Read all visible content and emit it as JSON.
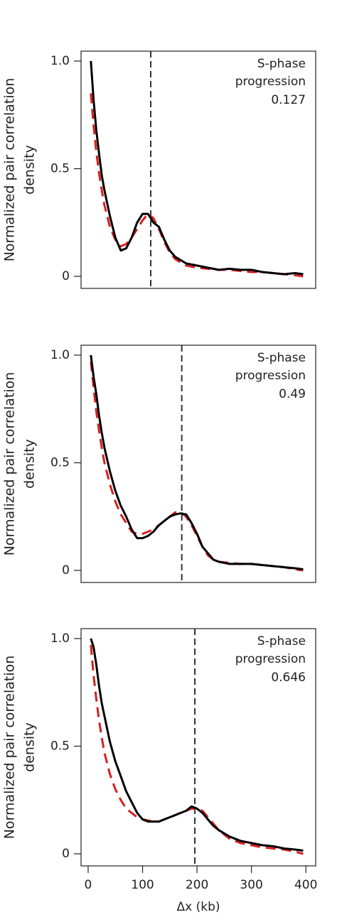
{
  "chart_data": [
    {
      "type": "line",
      "ylabel": [
        "Normalized pair correlation",
        "density"
      ],
      "annotation": [
        "S-phase",
        "progression"
      ],
      "progression": 0.127,
      "vline": 115,
      "x": [
        5,
        10,
        15,
        20,
        25,
        30,
        40,
        50,
        60,
        70,
        80,
        90,
        100,
        110,
        120,
        130,
        140,
        150,
        160,
        180,
        200,
        220,
        240,
        260,
        280,
        300,
        320,
        340,
        360,
        380,
        395
      ],
      "series": [
        {
          "color": "#d71f1f",
          "dashed": true,
          "values": [
            0.85,
            0.7,
            0.58,
            0.48,
            0.4,
            0.33,
            0.23,
            0.17,
            0.14,
            0.15,
            0.18,
            0.22,
            0.26,
            0.29,
            0.27,
            0.22,
            0.16,
            0.11,
            0.08,
            0.05,
            0.04,
            0.035,
            0.03,
            0.03,
            0.025,
            0.02,
            0.02,
            0.015,
            0.01,
            0.005,
            0
          ]
        },
        {
          "color": "#000000",
          "dashed": false,
          "values": [
            1.0,
            0.82,
            0.68,
            0.57,
            0.47,
            0.4,
            0.28,
            0.18,
            0.12,
            0.13,
            0.18,
            0.25,
            0.29,
            0.29,
            0.25,
            0.23,
            0.17,
            0.12,
            0.09,
            0.06,
            0.05,
            0.04,
            0.03,
            0.035,
            0.03,
            0.03,
            0.02,
            0.015,
            0.01,
            0.015,
            0.01
          ]
        }
      ],
      "xlim": [
        -13,
        418
      ],
      "ylim": [
        -0.056,
        1.046
      ],
      "yticks": [
        0,
        0.5,
        {
          "value": 1,
          "label": "1.0"
        }
      ]
    },
    {
      "type": "line",
      "ylabel": [
        "Normalized pair correlation",
        "density"
      ],
      "annotation": [
        "S-phase",
        "progression"
      ],
      "progression": 0.49,
      "vline": 172,
      "x": [
        5,
        10,
        15,
        20,
        25,
        30,
        40,
        50,
        60,
        70,
        80,
        90,
        100,
        110,
        120,
        130,
        140,
        150,
        160,
        170,
        180,
        190,
        200,
        210,
        220,
        230,
        240,
        260,
        280,
        300,
        320,
        340,
        360,
        380,
        395
      ],
      "series": [
        {
          "color": "#d71f1f",
          "dashed": true,
          "values": [
            0.97,
            0.85,
            0.74,
            0.65,
            0.57,
            0.5,
            0.4,
            0.32,
            0.26,
            0.22,
            0.18,
            0.17,
            0.17,
            0.18,
            0.19,
            0.21,
            0.23,
            0.25,
            0.27,
            0.27,
            0.25,
            0.21,
            0.16,
            0.11,
            0.07,
            0.05,
            0.04,
            0.035,
            0.03,
            0.03,
            0.025,
            0.02,
            0.015,
            0.005,
            0
          ]
        },
        {
          "color": "#000000",
          "dashed": false,
          "values": [
            1.0,
            0.9,
            0.82,
            0.72,
            0.64,
            0.57,
            0.46,
            0.37,
            0.3,
            0.25,
            0.19,
            0.15,
            0.15,
            0.16,
            0.18,
            0.21,
            0.23,
            0.25,
            0.26,
            0.265,
            0.26,
            0.22,
            0.17,
            0.11,
            0.08,
            0.05,
            0.04,
            0.03,
            0.03,
            0.03,
            0.025,
            0.02,
            0.015,
            0.01,
            0.005
          ]
        }
      ],
      "xlim": [
        -13,
        418
      ],
      "ylim": [
        -0.056,
        1.046
      ],
      "yticks": [
        0,
        0.5,
        {
          "value": 1,
          "label": "1.0"
        }
      ]
    },
    {
      "type": "line",
      "ylabel": [
        "Normalized pair correlation",
        "density"
      ],
      "xlabel": "Δx (kb)",
      "annotation": [
        "S-phase",
        "progression"
      ],
      "progression": 0.646,
      "vline": 196,
      "x": [
        5,
        10,
        15,
        20,
        25,
        30,
        40,
        50,
        60,
        70,
        80,
        90,
        100,
        110,
        120,
        130,
        140,
        150,
        160,
        170,
        180,
        190,
        200,
        210,
        220,
        230,
        240,
        260,
        280,
        300,
        320,
        340,
        360,
        380,
        395
      ],
      "series": [
        {
          "color": "#d71f1f",
          "dashed": true,
          "values": [
            0.97,
            0.83,
            0.72,
            0.62,
            0.54,
            0.47,
            0.37,
            0.3,
            0.25,
            0.21,
            0.19,
            0.17,
            0.16,
            0.155,
            0.15,
            0.15,
            0.16,
            0.17,
            0.18,
            0.19,
            0.2,
            0.21,
            0.21,
            0.2,
            0.17,
            0.14,
            0.11,
            0.07,
            0.05,
            0.04,
            0.03,
            0.025,
            0.02,
            0.01,
            0
          ]
        },
        {
          "color": "#000000",
          "dashed": false,
          "values": [
            1.0,
            0.96,
            0.88,
            0.78,
            0.7,
            0.64,
            0.52,
            0.43,
            0.36,
            0.29,
            0.24,
            0.19,
            0.16,
            0.15,
            0.15,
            0.15,
            0.16,
            0.17,
            0.18,
            0.19,
            0.2,
            0.22,
            0.21,
            0.19,
            0.16,
            0.13,
            0.11,
            0.08,
            0.06,
            0.05,
            0.04,
            0.035,
            0.025,
            0.02,
            0.015
          ]
        }
      ],
      "xlim": [
        -13,
        418
      ],
      "ylim": [
        -0.056,
        1.046
      ],
      "xticks": [
        0,
        100,
        200,
        300,
        400
      ],
      "yticks": [
        0,
        0.5,
        {
          "value": 1,
          "label": "1.0"
        }
      ]
    }
  ]
}
